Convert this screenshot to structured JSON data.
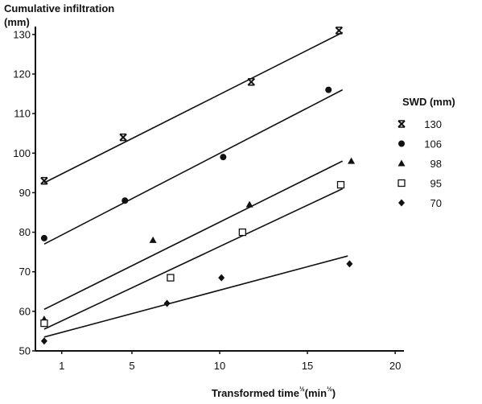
{
  "chart_data": {
    "type": "scatter",
    "title": "",
    "ylabel_line1": "Cumulative infiltration",
    "ylabel_line2": "(mm)",
    "xlabel": "Transformed time",
    "xlabel_sup": "½",
    "xlabel_units_open": "(min",
    "xlabel_units_sup": "½",
    "xlabel_units_close": ")",
    "xlim": [
      -0.5,
      20.5
    ],
    "ylim": [
      50,
      132
    ],
    "x_ticks": [
      {
        "value": 1,
        "label": "1"
      },
      {
        "value": 5,
        "label": "5"
      },
      {
        "value": 10,
        "label": "10"
      },
      {
        "value": 15,
        "label": "15"
      },
      {
        "value": 20,
        "label": "20"
      }
    ],
    "y_ticks": [
      {
        "value": 50,
        "label": "50"
      },
      {
        "value": 60,
        "label": "60"
      },
      {
        "value": 70,
        "label": "70"
      },
      {
        "value": 80,
        "label": "80"
      },
      {
        "value": 90,
        "label": "90"
      },
      {
        "value": 100,
        "label": "100"
      },
      {
        "value": 110,
        "label": "110"
      },
      {
        "value": 120,
        "label": "120"
      },
      {
        "value": 130,
        "label": "130"
      }
    ],
    "grid": false,
    "legend": {
      "title": "SWD  (mm)",
      "placement": "right"
    },
    "series": [
      {
        "name": "130",
        "marker": "x",
        "points": [
          [
            0,
            93
          ],
          [
            4.5,
            104
          ],
          [
            11.8,
            118
          ],
          [
            16.8,
            131
          ]
        ],
        "fit": [
          [
            0,
            92.5
          ],
          [
            17,
            130.5
          ]
        ]
      },
      {
        "name": "106",
        "marker": "circle",
        "points": [
          [
            0,
            78.5
          ],
          [
            4.6,
            88
          ],
          [
            10.2,
            99
          ],
          [
            16.2,
            116
          ]
        ],
        "fit": [
          [
            0,
            77
          ],
          [
            17,
            116
          ]
        ]
      },
      {
        "name": "98",
        "marker": "triangle",
        "points": [
          [
            0,
            58
          ],
          [
            6.2,
            78
          ],
          [
            11.7,
            87
          ],
          [
            17.5,
            98
          ]
        ],
        "fit": [
          [
            0,
            60.5
          ],
          [
            17,
            98
          ]
        ]
      },
      {
        "name": "95",
        "marker": "square",
        "points": [
          [
            0,
            57
          ],
          [
            7.2,
            68.5
          ],
          [
            11.3,
            80
          ],
          [
            16.9,
            92
          ]
        ],
        "fit": [
          [
            0,
            55.5
          ],
          [
            17,
            91
          ]
        ]
      },
      {
        "name": "70",
        "marker": "diamond",
        "points": [
          [
            0,
            52.5
          ],
          [
            7,
            62
          ],
          [
            10.1,
            68.5
          ],
          [
            17.4,
            72
          ]
        ],
        "fit": [
          [
            0,
            53.5
          ],
          [
            17.3,
            74
          ]
        ]
      }
    ]
  },
  "colors": {
    "ink": "#111111",
    "background": "#ffffff"
  }
}
